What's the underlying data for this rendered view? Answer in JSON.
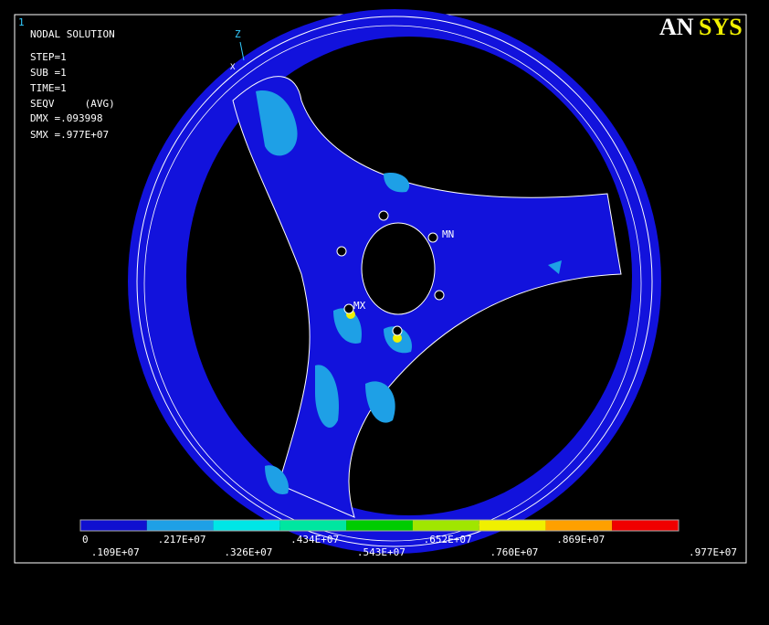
{
  "window_number": "1",
  "info": [
    "NODAL SOLUTION",
    "STEP=1",
    "SUB =1",
    "TIME=1",
    "SEQV     (AVG)",
    "DMX =.093998",
    "SMX =.977E+07"
  ],
  "logo": {
    "first": "AN",
    "second": "SYS"
  },
  "annotations": {
    "mn": "MN",
    "mx": "MX",
    "axis_z": "Z",
    "axis_x": "X"
  },
  "legend": {
    "colors": [
      "#1010d0",
      "#1ea0e6",
      "#00e6e6",
      "#00e6a0",
      "#00cc00",
      "#a0e600",
      "#f0f000",
      "#ffa000",
      "#f00000"
    ],
    "labels": [
      "0",
      ".109E+07",
      ".217E+07",
      ".326E+07",
      ".434E+07",
      ".543E+07",
      ".652E+07",
      ".760E+07",
      ".869E+07",
      ".977E+07"
    ]
  }
}
